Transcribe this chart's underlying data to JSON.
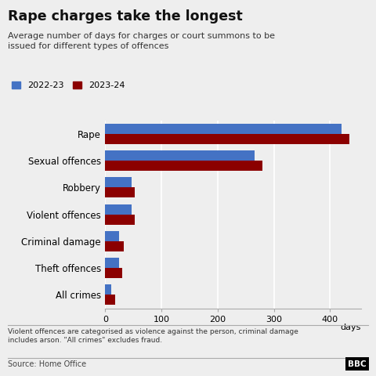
{
  "title": "Rape charges take the longest",
  "subtitle": "Average number of days for charges or court summons to be\nissued for different types of offences",
  "categories": [
    "Rape",
    "Sexual offences",
    "Robbery",
    "Violent offences",
    "Criminal damage",
    "Theft offences",
    "All crimes"
  ],
  "values_2022_23": [
    420,
    265,
    47,
    47,
    25,
    25,
    10
  ],
  "values_2023_24": [
    435,
    280,
    52,
    52,
    33,
    30,
    18
  ],
  "color_2022_23": "#4472C4",
  "color_2023_24": "#8B0000",
  "xlabel": "days",
  "xticks": [
    0,
    100,
    200,
    300,
    400
  ],
  "xtick_labels": [
    "0",
    "100",
    "200",
    "300",
    "400"
  ],
  "bg_color": "#eeeeee",
  "footnote": "Violent offences are categorised as violence against the person, criminal damage\nincludes arson. \"All crimes\" excludes fraud.",
  "source": "Source: Home Office",
  "legend_2022_23": "2022-23",
  "legend_2023_24": "2023-24"
}
